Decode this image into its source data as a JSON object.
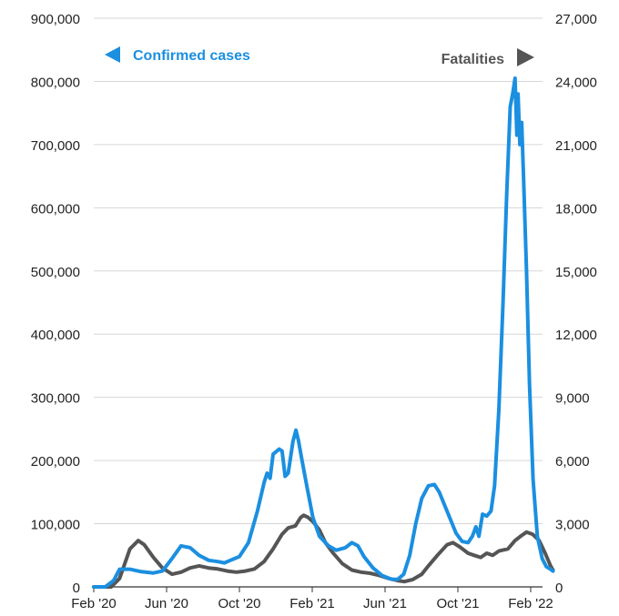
{
  "chart_data": {
    "type": "line",
    "title": "",
    "xlabel": "",
    "ylabel": "",
    "x_ticks": [
      "Feb '20",
      "Jun '20",
      "Oct '20",
      "Feb '21",
      "Jun '21",
      "Oct '21",
      "Feb '22"
    ],
    "y_left": {
      "lim": [
        0,
        900000
      ],
      "ticks": [
        "0",
        "100,000",
        "200,000",
        "300,000",
        "400,000",
        "500,000",
        "600,000",
        "700,000",
        "800,000",
        "900,000"
      ]
    },
    "y_right": {
      "lim": [
        0,
        27000
      ],
      "ticks": [
        "0",
        "3,000",
        "6,000",
        "9,000",
        "12,000",
        "15,000",
        "18,000",
        "21,000",
        "24,000",
        "27,000"
      ]
    },
    "grid": true,
    "legend": {
      "left": {
        "text": "Confirmed cases",
        "placement": "top-left",
        "arrow": "left"
      },
      "right": {
        "text": "Fatalities",
        "placement": "top-right",
        "arrow": "right"
      }
    },
    "colors": {
      "cases": "#1b8fe0",
      "fatalities": "#555555",
      "grid": "#d6d6d6",
      "axis": "#333333"
    },
    "series": [
      {
        "name": "Confirmed cases",
        "axis": "left",
        "points": [
          [
            "2020-02-01",
            0
          ],
          [
            "2020-02-20",
            0
          ],
          [
            "2020-03-05",
            10000
          ],
          [
            "2020-03-15",
            28000
          ],
          [
            "2020-04-01",
            28000
          ],
          [
            "2020-04-20",
            24000
          ],
          [
            "2020-05-10",
            22000
          ],
          [
            "2020-05-25",
            25000
          ],
          [
            "2020-06-10",
            45000
          ],
          [
            "2020-06-25",
            65000
          ],
          [
            "2020-07-10",
            62000
          ],
          [
            "2020-07-25",
            50000
          ],
          [
            "2020-08-10",
            42000
          ],
          [
            "2020-08-25",
            40000
          ],
          [
            "2020-09-05",
            38000
          ],
          [
            "2020-09-15",
            42000
          ],
          [
            "2020-09-30",
            48000
          ],
          [
            "2020-10-15",
            70000
          ],
          [
            "2020-10-30",
            120000
          ],
          [
            "2020-11-10",
            165000
          ],
          [
            "2020-11-15",
            180000
          ],
          [
            "2020-11-20",
            172000
          ],
          [
            "2020-11-25",
            210000
          ],
          [
            "2020-12-05",
            218000
          ],
          [
            "2020-12-10",
            215000
          ],
          [
            "2020-12-15",
            175000
          ],
          [
            "2020-12-20",
            180000
          ],
          [
            "2020-12-28",
            230000
          ],
          [
            "2021-01-02",
            248000
          ],
          [
            "2021-01-06",
            232000
          ],
          [
            "2021-01-12",
            200000
          ],
          [
            "2021-01-20",
            160000
          ],
          [
            "2021-01-30",
            110000
          ],
          [
            "2021-02-10",
            80000
          ],
          [
            "2021-02-25",
            65000
          ],
          [
            "2021-03-10",
            58000
          ],
          [
            "2021-03-25",
            62000
          ],
          [
            "2021-04-05",
            70000
          ],
          [
            "2021-04-15",
            65000
          ],
          [
            "2021-04-25",
            48000
          ],
          [
            "2021-05-10",
            30000
          ],
          [
            "2021-05-25",
            18000
          ],
          [
            "2021-06-10",
            12000
          ],
          [
            "2021-06-20",
            12000
          ],
          [
            "2021-06-30",
            20000
          ],
          [
            "2021-07-10",
            50000
          ],
          [
            "2021-07-20",
            100000
          ],
          [
            "2021-07-30",
            140000
          ],
          [
            "2021-08-10",
            160000
          ],
          [
            "2021-08-20",
            162000
          ],
          [
            "2021-08-28",
            150000
          ],
          [
            "2021-09-10",
            120000
          ],
          [
            "2021-09-25",
            85000
          ],
          [
            "2021-10-05",
            72000
          ],
          [
            "2021-10-15",
            70000
          ],
          [
            "2021-10-22",
            80000
          ],
          [
            "2021-10-28",
            95000
          ],
          [
            "2021-11-02",
            80000
          ],
          [
            "2021-11-08",
            115000
          ],
          [
            "2021-11-15",
            112000
          ],
          [
            "2021-11-22",
            120000
          ],
          [
            "2021-11-28",
            160000
          ],
          [
            "2021-12-05",
            280000
          ],
          [
            "2021-12-12",
            450000
          ],
          [
            "2021-12-18",
            620000
          ],
          [
            "2021-12-24",
            760000
          ],
          [
            "2021-12-28",
            780000
          ],
          [
            "2022-01-01",
            805000
          ],
          [
            "2022-01-04",
            715000
          ],
          [
            "2022-01-06",
            780000
          ],
          [
            "2022-01-09",
            700000
          ],
          [
            "2022-01-12",
            735000
          ],
          [
            "2022-01-15",
            650000
          ],
          [
            "2022-01-20",
            500000
          ],
          [
            "2022-01-25",
            320000
          ],
          [
            "2022-01-31",
            170000
          ],
          [
            "2022-02-07",
            80000
          ],
          [
            "2022-02-15",
            45000
          ],
          [
            "2022-02-22",
            32000
          ],
          [
            "2022-03-01",
            28000
          ],
          [
            "2022-03-05",
            25000
          ]
        ]
      },
      {
        "name": "Fatalities",
        "axis": "right",
        "points": [
          [
            "2020-02-01",
            0
          ],
          [
            "2020-03-01",
            0
          ],
          [
            "2020-03-15",
            400
          ],
          [
            "2020-04-01",
            1800
          ],
          [
            "2020-04-15",
            2200
          ],
          [
            "2020-04-25",
            2000
          ],
          [
            "2020-05-10",
            1400
          ],
          [
            "2020-05-25",
            900
          ],
          [
            "2020-06-10",
            600
          ],
          [
            "2020-06-25",
            700
          ],
          [
            "2020-07-10",
            900
          ],
          [
            "2020-07-25",
            1000
          ],
          [
            "2020-08-10",
            900
          ],
          [
            "2020-08-25",
            850
          ],
          [
            "2020-09-10",
            750
          ],
          [
            "2020-09-25",
            700
          ],
          [
            "2020-10-10",
            750
          ],
          [
            "2020-10-25",
            850
          ],
          [
            "2020-11-10",
            1200
          ],
          [
            "2020-11-25",
            1800
          ],
          [
            "2020-12-10",
            2500
          ],
          [
            "2020-12-20",
            2800
          ],
          [
            "2021-01-01",
            2900
          ],
          [
            "2021-01-10",
            3300
          ],
          [
            "2021-01-15",
            3400
          ],
          [
            "2021-01-22",
            3300
          ],
          [
            "2021-01-30",
            3100
          ],
          [
            "2021-02-10",
            2700
          ],
          [
            "2021-02-20",
            2100
          ],
          [
            "2021-03-05",
            1600
          ],
          [
            "2021-03-20",
            1100
          ],
          [
            "2021-04-05",
            800
          ],
          [
            "2021-04-20",
            700
          ],
          [
            "2021-05-05",
            650
          ],
          [
            "2021-05-20",
            550
          ],
          [
            "2021-06-05",
            400
          ],
          [
            "2021-06-20",
            300
          ],
          [
            "2021-07-01",
            250
          ],
          [
            "2021-07-15",
            350
          ],
          [
            "2021-07-30",
            600
          ],
          [
            "2021-08-10",
            1000
          ],
          [
            "2021-08-25",
            1500
          ],
          [
            "2021-09-10",
            2000
          ],
          [
            "2021-09-20",
            2100
          ],
          [
            "2021-10-01",
            1900
          ],
          [
            "2021-10-15",
            1600
          ],
          [
            "2021-10-25",
            1500
          ],
          [
            "2021-11-05",
            1400
          ],
          [
            "2021-11-15",
            1600
          ],
          [
            "2021-11-25",
            1500
          ],
          [
            "2021-12-05",
            1700
          ],
          [
            "2021-12-20",
            1800
          ],
          [
            "2022-01-01",
            2200
          ],
          [
            "2022-01-10",
            2400
          ],
          [
            "2022-01-20",
            2600
          ],
          [
            "2022-01-30",
            2500
          ],
          [
            "2022-02-10",
            2200
          ],
          [
            "2022-02-20",
            1600
          ],
          [
            "2022-03-01",
            1000
          ],
          [
            "2022-03-05",
            800
          ]
        ]
      }
    ]
  }
}
